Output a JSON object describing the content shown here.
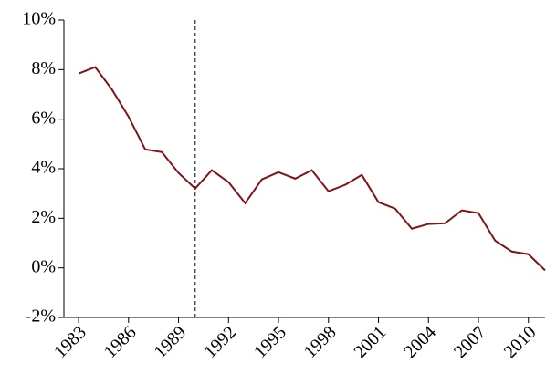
{
  "chart_data": {
    "type": "line",
    "x": [
      1983,
      1984,
      1985,
      1986,
      1987,
      1988,
      1989,
      1990,
      1991,
      1992,
      1993,
      1994,
      1995,
      1996,
      1997,
      1998,
      1999,
      2000,
      2001,
      2002,
      2003,
      2004,
      2005,
      2006,
      2007,
      2008,
      2009,
      2010,
      2011
    ],
    "series": [
      {
        "color": "#7f1416",
        "values": [
          7.84,
          8.1,
          7.2,
          6.1,
          4.78,
          4.67,
          3.83,
          3.2,
          3.94,
          3.46,
          2.61,
          3.57,
          3.86,
          3.6,
          3.94,
          3.09,
          3.35,
          3.75,
          2.65,
          2.39,
          1.58,
          1.77,
          1.8,
          2.32,
          2.21,
          1.1,
          0.66,
          0.55,
          -0.1
        ]
      }
    ],
    "xlim": [
      1982.12,
      2011
    ],
    "xticks": [
      1983,
      1986,
      1989,
      1992,
      1995,
      1998,
      2001,
      2004,
      2007,
      2010
    ],
    "ylim": [
      -2,
      10
    ],
    "yticks": [
      {
        "value": -2,
        "label": "-2%"
      },
      {
        "value": 0,
        "label": "0%"
      },
      {
        "value": 2,
        "label": "2%"
      },
      {
        "value": 4,
        "label": "4%"
      },
      {
        "value": 6,
        "label": "6%"
      },
      {
        "value": 8,
        "label": "8%"
      },
      {
        "value": 10,
        "label": "10%"
      }
    ],
    "vline": 1990,
    "grid": false
  }
}
